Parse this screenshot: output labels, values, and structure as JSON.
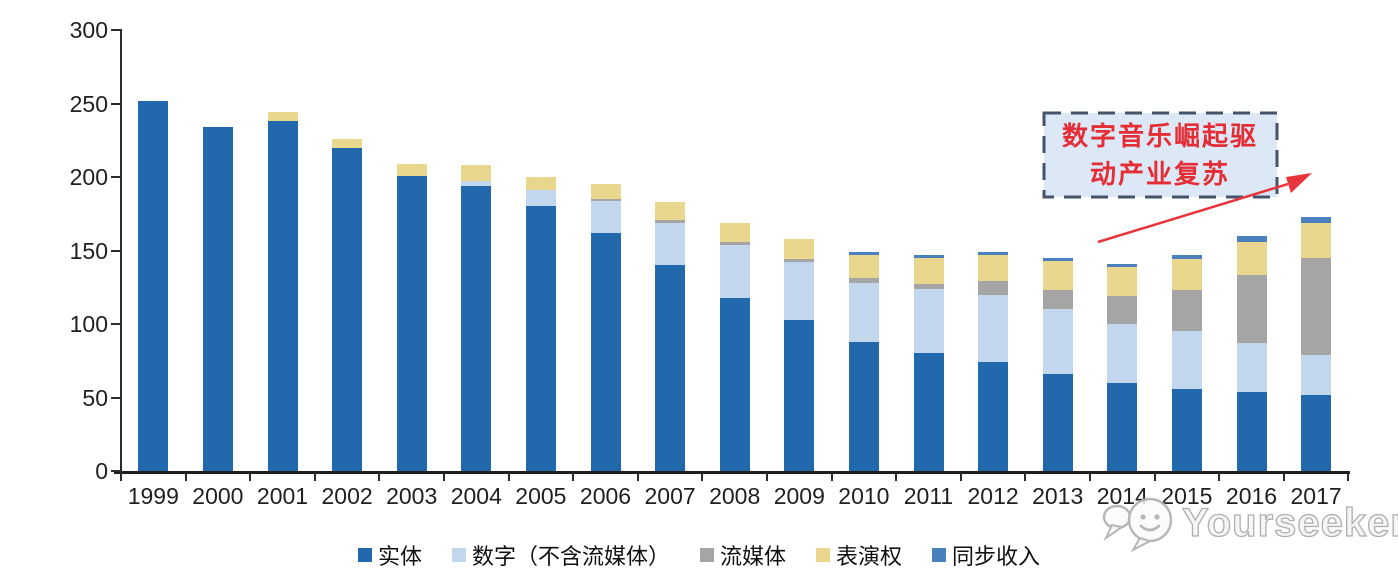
{
  "chart_data": {
    "type": "bar",
    "stacked": true,
    "title": "",
    "xlabel": "",
    "ylabel": "",
    "categories": [
      "1999",
      "2000",
      "2001",
      "2002",
      "2003",
      "2004",
      "2005",
      "2006",
      "2007",
      "2008",
      "2009",
      "2010",
      "2011",
      "2012",
      "2013",
      "2014",
      "2015",
      "2016",
      "2017"
    ],
    "series": [
      {
        "name": "实体",
        "color": "#2169AC",
        "values": [
          252,
          234,
          238,
          220,
          201,
          194,
          180,
          162,
          140,
          118,
          103,
          88,
          80,
          74,
          66,
          60,
          56,
          54,
          52
        ]
      },
      {
        "name": "数字（不含流媒体）",
        "color": "#C2D7ED",
        "values": [
          0,
          0,
          0,
          0,
          0,
          3,
          11,
          22,
          29,
          36,
          39,
          40,
          44,
          46,
          44,
          40,
          39,
          33,
          27
        ]
      },
      {
        "name": "流媒体",
        "color": "#A5A5A5",
        "values": [
          0,
          0,
          0,
          0,
          0,
          0,
          0,
          1,
          2,
          2,
          2,
          3,
          3,
          9,
          13,
          19,
          28,
          46,
          66
        ]
      },
      {
        "name": "表演权",
        "color": "#E9D78E",
        "values": [
          0,
          0,
          6,
          6,
          8,
          11,
          9,
          10,
          12,
          13,
          14,
          16,
          18,
          18,
          20,
          20,
          21,
          23,
          24
        ]
      },
      {
        "name": "同步收入",
        "color": "#4A80BE",
        "values": [
          0,
          0,
          0,
          0,
          0,
          0,
          0,
          0,
          0,
          0,
          0,
          2,
          2,
          2,
          2,
          2,
          3,
          4,
          4
        ]
      }
    ],
    "ylim": [
      0,
      300
    ],
    "yticks": [
      0,
      50,
      100,
      150,
      200,
      250,
      300
    ],
    "grid": false,
    "legend_position": "bottom"
  },
  "annotation": {
    "line1": "数字音乐崛起驱",
    "line2": "动产业复苏",
    "text_color": "#E42D35",
    "box_fill": "#DCE8F5",
    "box_border": "#44546A",
    "arrow_color": "#E8353B"
  },
  "watermark": {
    "text": "Yourseeker",
    "icon": "chat-smiley-icon",
    "color": "#ABABAB"
  }
}
